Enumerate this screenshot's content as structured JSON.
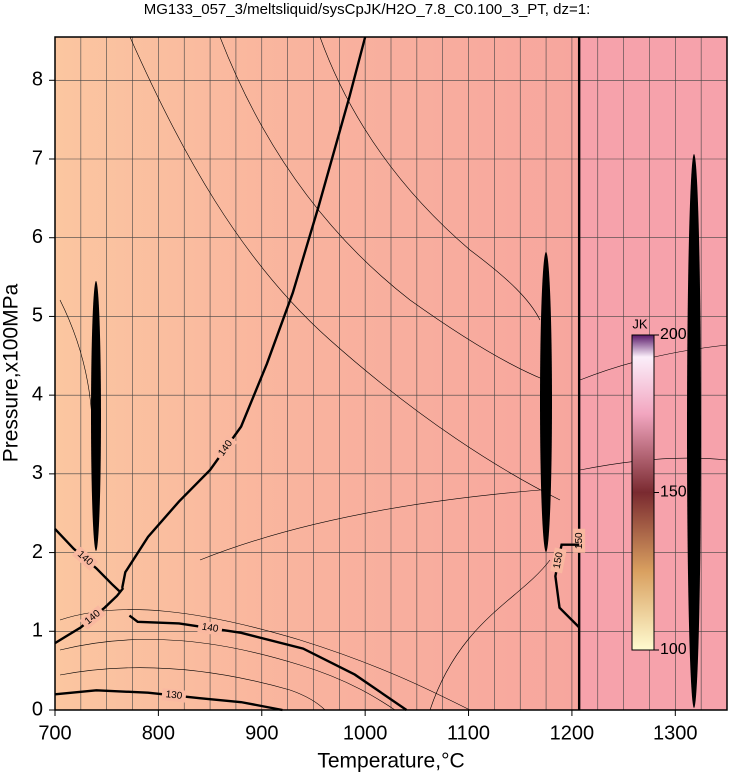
{
  "chart_data": {
    "type": "contour",
    "title": "MG133_057_3/meltsliquid/sysCpJK/H2O_7.8_C0.100_3_PT, dz=1:",
    "x_label": "Temperature,°C",
    "y_label": "Pressure,x100MPa",
    "xlim": [
      700,
      1350
    ],
    "ylim": [
      0,
      8.55
    ],
    "xticks": [
      700,
      800,
      900,
      1000,
      1100,
      1200,
      1300
    ],
    "yticks": [
      0,
      1,
      2,
      3,
      4,
      5,
      6,
      7,
      8
    ],
    "xgrid": [
      725,
      750,
      775,
      800,
      825,
      850,
      875,
      900,
      925,
      950,
      975,
      1000,
      1025,
      1050,
      1075,
      1100,
      1125,
      1150,
      1175,
      1200,
      1225,
      1250,
      1275,
      1300,
      1325
    ],
    "grid": true,
    "contours": [
      {
        "level": 140,
        "x": [
          700,
          718,
          740,
          755,
          763
        ],
        "y": [
          2.3,
          2.05,
          1.8,
          1.6,
          1.5
        ]
      },
      {
        "level": 140,
        "x": [
          700,
          725,
          748,
          760,
          766
        ],
        "y": [
          0.85,
          1.05,
          1.3,
          1.45,
          1.55
        ]
      },
      {
        "level": 140,
        "x": [
          765,
          768,
          790,
          820,
          850,
          880,
          905,
          930,
          955,
          985,
          1000
        ],
        "y": [
          1.55,
          1.75,
          2.2,
          2.65,
          3.05,
          3.6,
          4.4,
          5.3,
          6.4,
          7.8,
          8.55
        ]
      },
      {
        "level": 140,
        "x": [
          772,
          780,
          820,
          880,
          940,
          990,
          1040
        ],
        "y": [
          1.2,
          1.12,
          1.1,
          0.98,
          0.78,
          0.45,
          0
        ]
      },
      {
        "level": 130,
        "x": [
          700,
          740,
          790,
          840,
          880,
          920
        ],
        "y": [
          0.2,
          0.25,
          0.22,
          0.15,
          0.1,
          0
        ]
      },
      {
        "level": 150,
        "x": [
          1207,
          1207,
          1207
        ],
        "y": [
          0,
          4.3,
          8.55
        ]
      },
      {
        "level": 150,
        "x": [
          1207,
          1190,
          1184,
          1188,
          1207
        ],
        "y": [
          2.1,
          2.1,
          1.7,
          1.3,
          1.05
        ]
      }
    ],
    "colorbar": {
      "label": "JK",
      "range": [
        100,
        200
      ],
      "ticks": [
        100,
        150,
        200
      ]
    }
  }
}
